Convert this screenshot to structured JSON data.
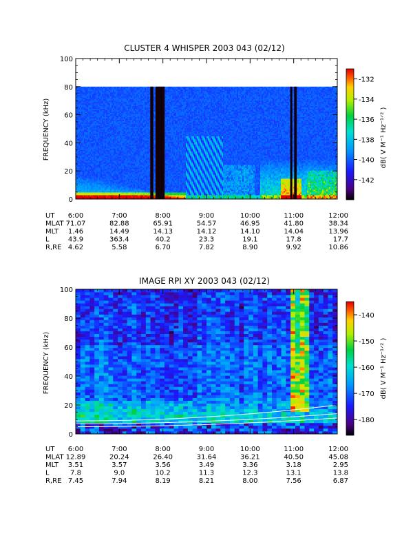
{
  "chart_data": [
    {
      "type": "heatmap",
      "title": "CLUSTER 4 WHISPER 2003 043 (02/12)",
      "ylabel": "FREQUENCY (kHz)",
      "x_ticks": [
        "6:00",
        "7:00",
        "8:00",
        "9:00",
        "10:00",
        "11:00",
        "12:00"
      ],
      "y_ticks": [
        "0",
        "20",
        "40",
        "60",
        "80",
        "100"
      ],
      "ylim": [
        0,
        100
      ],
      "data_top": 80,
      "colorbar": {
        "label": "dB( V M⁻¹ Hz⁻¹ᐟ² )",
        "ticks": [
          "-132",
          "-134",
          "-136",
          "-138",
          "-140",
          "-142"
        ],
        "range": [
          -144,
          -131
        ]
      },
      "ephemeris": {
        "labels": [
          "UT",
          "MLAT",
          "MLT",
          "L",
          "R,RE"
        ],
        "rows": [
          [
            "6:00",
            "7:00",
            "8:00",
            "9:00",
            "10:00",
            "11:00",
            "12:00"
          ],
          [
            "71.07",
            "82.88",
            "65.91",
            "54.57",
            "46.95",
            "41.80",
            "38.34"
          ],
          [
            "1.46",
            "14.49",
            "14.13",
            "14.12",
            "14.10",
            "14.04",
            "13.96"
          ],
          [
            "43.9",
            "363.4",
            "40.2",
            "23.3",
            "19.1",
            "17.8",
            "17.7"
          ],
          [
            "4.62",
            "5.58",
            "6.70",
            "7.82",
            "8.90",
            "9.92",
            "10.86"
          ]
        ]
      }
    },
    {
      "type": "heatmap",
      "title": "IMAGE RPI XY 2003 043 (02/12)",
      "ylabel": "FREQUENCY (kHz)",
      "x_ticks": [
        "6:00",
        "7:00",
        "8:00",
        "9:00",
        "10:00",
        "11:00",
        "12:00"
      ],
      "y_ticks": [
        "0",
        "20",
        "40",
        "60",
        "80",
        "100"
      ],
      "ylim": [
        0,
        100
      ],
      "data_top": 100,
      "colorbar": {
        "label": "dB( V M⁻¹ Hz⁻¹ᐟ² )",
        "ticks": [
          "-140",
          "-150",
          "-160",
          "-170",
          "-180"
        ],
        "range": [
          -186,
          -135
        ]
      },
      "ephemeris": {
        "labels": [
          "UT",
          "MLAT",
          "MLT",
          "L",
          "R,RE"
        ],
        "rows": [
          [
            "6:00",
            "7:00",
            "8:00",
            "9:00",
            "10:00",
            "11:00",
            "12:00"
          ],
          [
            "12.89",
            "20.24",
            "26.40",
            "31.64",
            "36.21",
            "40.50",
            "45.08"
          ],
          [
            "3.51",
            "3.57",
            "3.56",
            "3.49",
            "3.36",
            "3.18",
            "2.95"
          ],
          [
            "7.8",
            "9.0",
            "10.2",
            "11.3",
            "12.3",
            "13.1",
            "13.8"
          ],
          [
            "7.45",
            "7.94",
            "8.19",
            "8.21",
            "8.00",
            "7.56",
            "6.87"
          ]
        ]
      }
    }
  ]
}
